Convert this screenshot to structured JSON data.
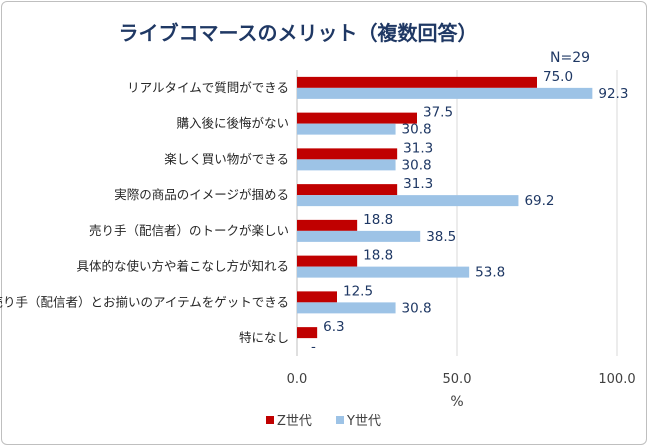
{
  "chart_data": {
    "type": "bar",
    "orientation": "horizontal",
    "title": "ライブコマースのメリット（複数回答）",
    "note": "N=29",
    "categories": [
      "リアルタイムで質問ができる",
      "購入後に後悔がない",
      "楽しく買い物ができる",
      "実際の商品のイメージが掴める",
      "売り手（配信者）のトークが楽しい",
      "具体的な使い方や着こなし方が知れる",
      "売り手（配信者）とお揃いのアイテムをゲットできる",
      "特になし"
    ],
    "series": [
      {
        "name": "Z世代",
        "color": "#c00000",
        "values": [
          75.0,
          37.5,
          31.3,
          31.3,
          18.8,
          18.8,
          12.5,
          6.3
        ]
      },
      {
        "name": "Y世代",
        "color": "#9dc3e6",
        "values": [
          92.3,
          30.8,
          30.8,
          69.2,
          38.5,
          53.8,
          30.8,
          0
        ]
      }
    ],
    "value_labels": [
      [
        "75.0",
        "37.5",
        "31.3",
        "31.3",
        "18.8",
        "18.8",
        "12.5",
        "6.3"
      ],
      [
        "92.3",
        "30.8",
        "30.8",
        "69.2",
        "38.5",
        "53.8",
        "30.8",
        "-"
      ]
    ],
    "xlim": [
      0,
      100
    ],
    "xticks": [
      "0.0",
      "50.0",
      "100.0"
    ],
    "xlabel": "%",
    "ylabel": "",
    "grid": true,
    "legend_position": "bottom"
  }
}
